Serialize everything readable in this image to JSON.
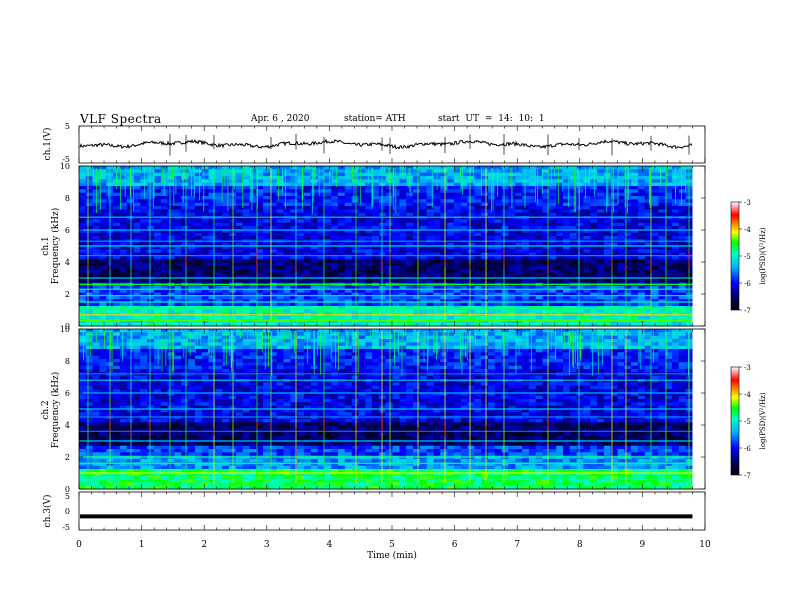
{
  "header": {
    "title": "VLF  Spectra",
    "date": "Apr. 6   , 2020",
    "station": "station= ATH",
    "start_ut": "start  UT  =    14: 10: 1"
  },
  "chart_data": [
    {
      "type": "line",
      "ylabel": "ch.1(V)",
      "ylim": [
        -5,
        5
      ],
      "yticks": [
        "5",
        "-5"
      ],
      "xlim": [
        0,
        10
      ],
      "grid": false,
      "description_values": {
        "baseline": 0.1,
        "spikes_min": 1,
        "end_min": 9.8
      }
    },
    {
      "type": "heatmap",
      "ylabel_lines": [
        "ch.1",
        "Frequency  (kHz)"
      ],
      "ylim": [
        0,
        10
      ],
      "yticks": [
        "0",
        "2",
        "4",
        "6",
        "8",
        "10"
      ],
      "xlim": [
        0,
        10
      ],
      "colorbar": {
        "label": "log(PSD)(V²/Hz)",
        "ticks": [
          "-3",
          "-4",
          "-5",
          "-6",
          "-7"
        ],
        "range": [
          -7,
          -3
        ]
      }
    },
    {
      "type": "heatmap",
      "ylabel_lines": [
        "ch.2",
        "Frequency  (kHz)"
      ],
      "ylim": [
        0,
        10
      ],
      "yticks": [
        "0",
        "2",
        "4",
        "6",
        "8",
        "10"
      ],
      "xlim": [
        0,
        10
      ],
      "colorbar": {
        "label": "log(PSD)(V²/Hz)",
        "ticks": [
          "-3",
          "-4",
          "-5",
          "-6",
          "-7"
        ],
        "range": [
          -7,
          -3
        ]
      }
    },
    {
      "type": "line",
      "ylabel": "ch.3(V)",
      "ylim": [
        -5,
        5
      ],
      "yticks": [
        "5",
        "0",
        "-5"
      ],
      "xlim": [
        0,
        10
      ],
      "values_constant": -1.4,
      "grid": false
    }
  ],
  "xaxis": {
    "label": "Time  (min)",
    "ticks": [
      "0",
      "1",
      "2",
      "3",
      "4",
      "5",
      "6",
      "7",
      "8",
      "9",
      "10"
    ]
  }
}
